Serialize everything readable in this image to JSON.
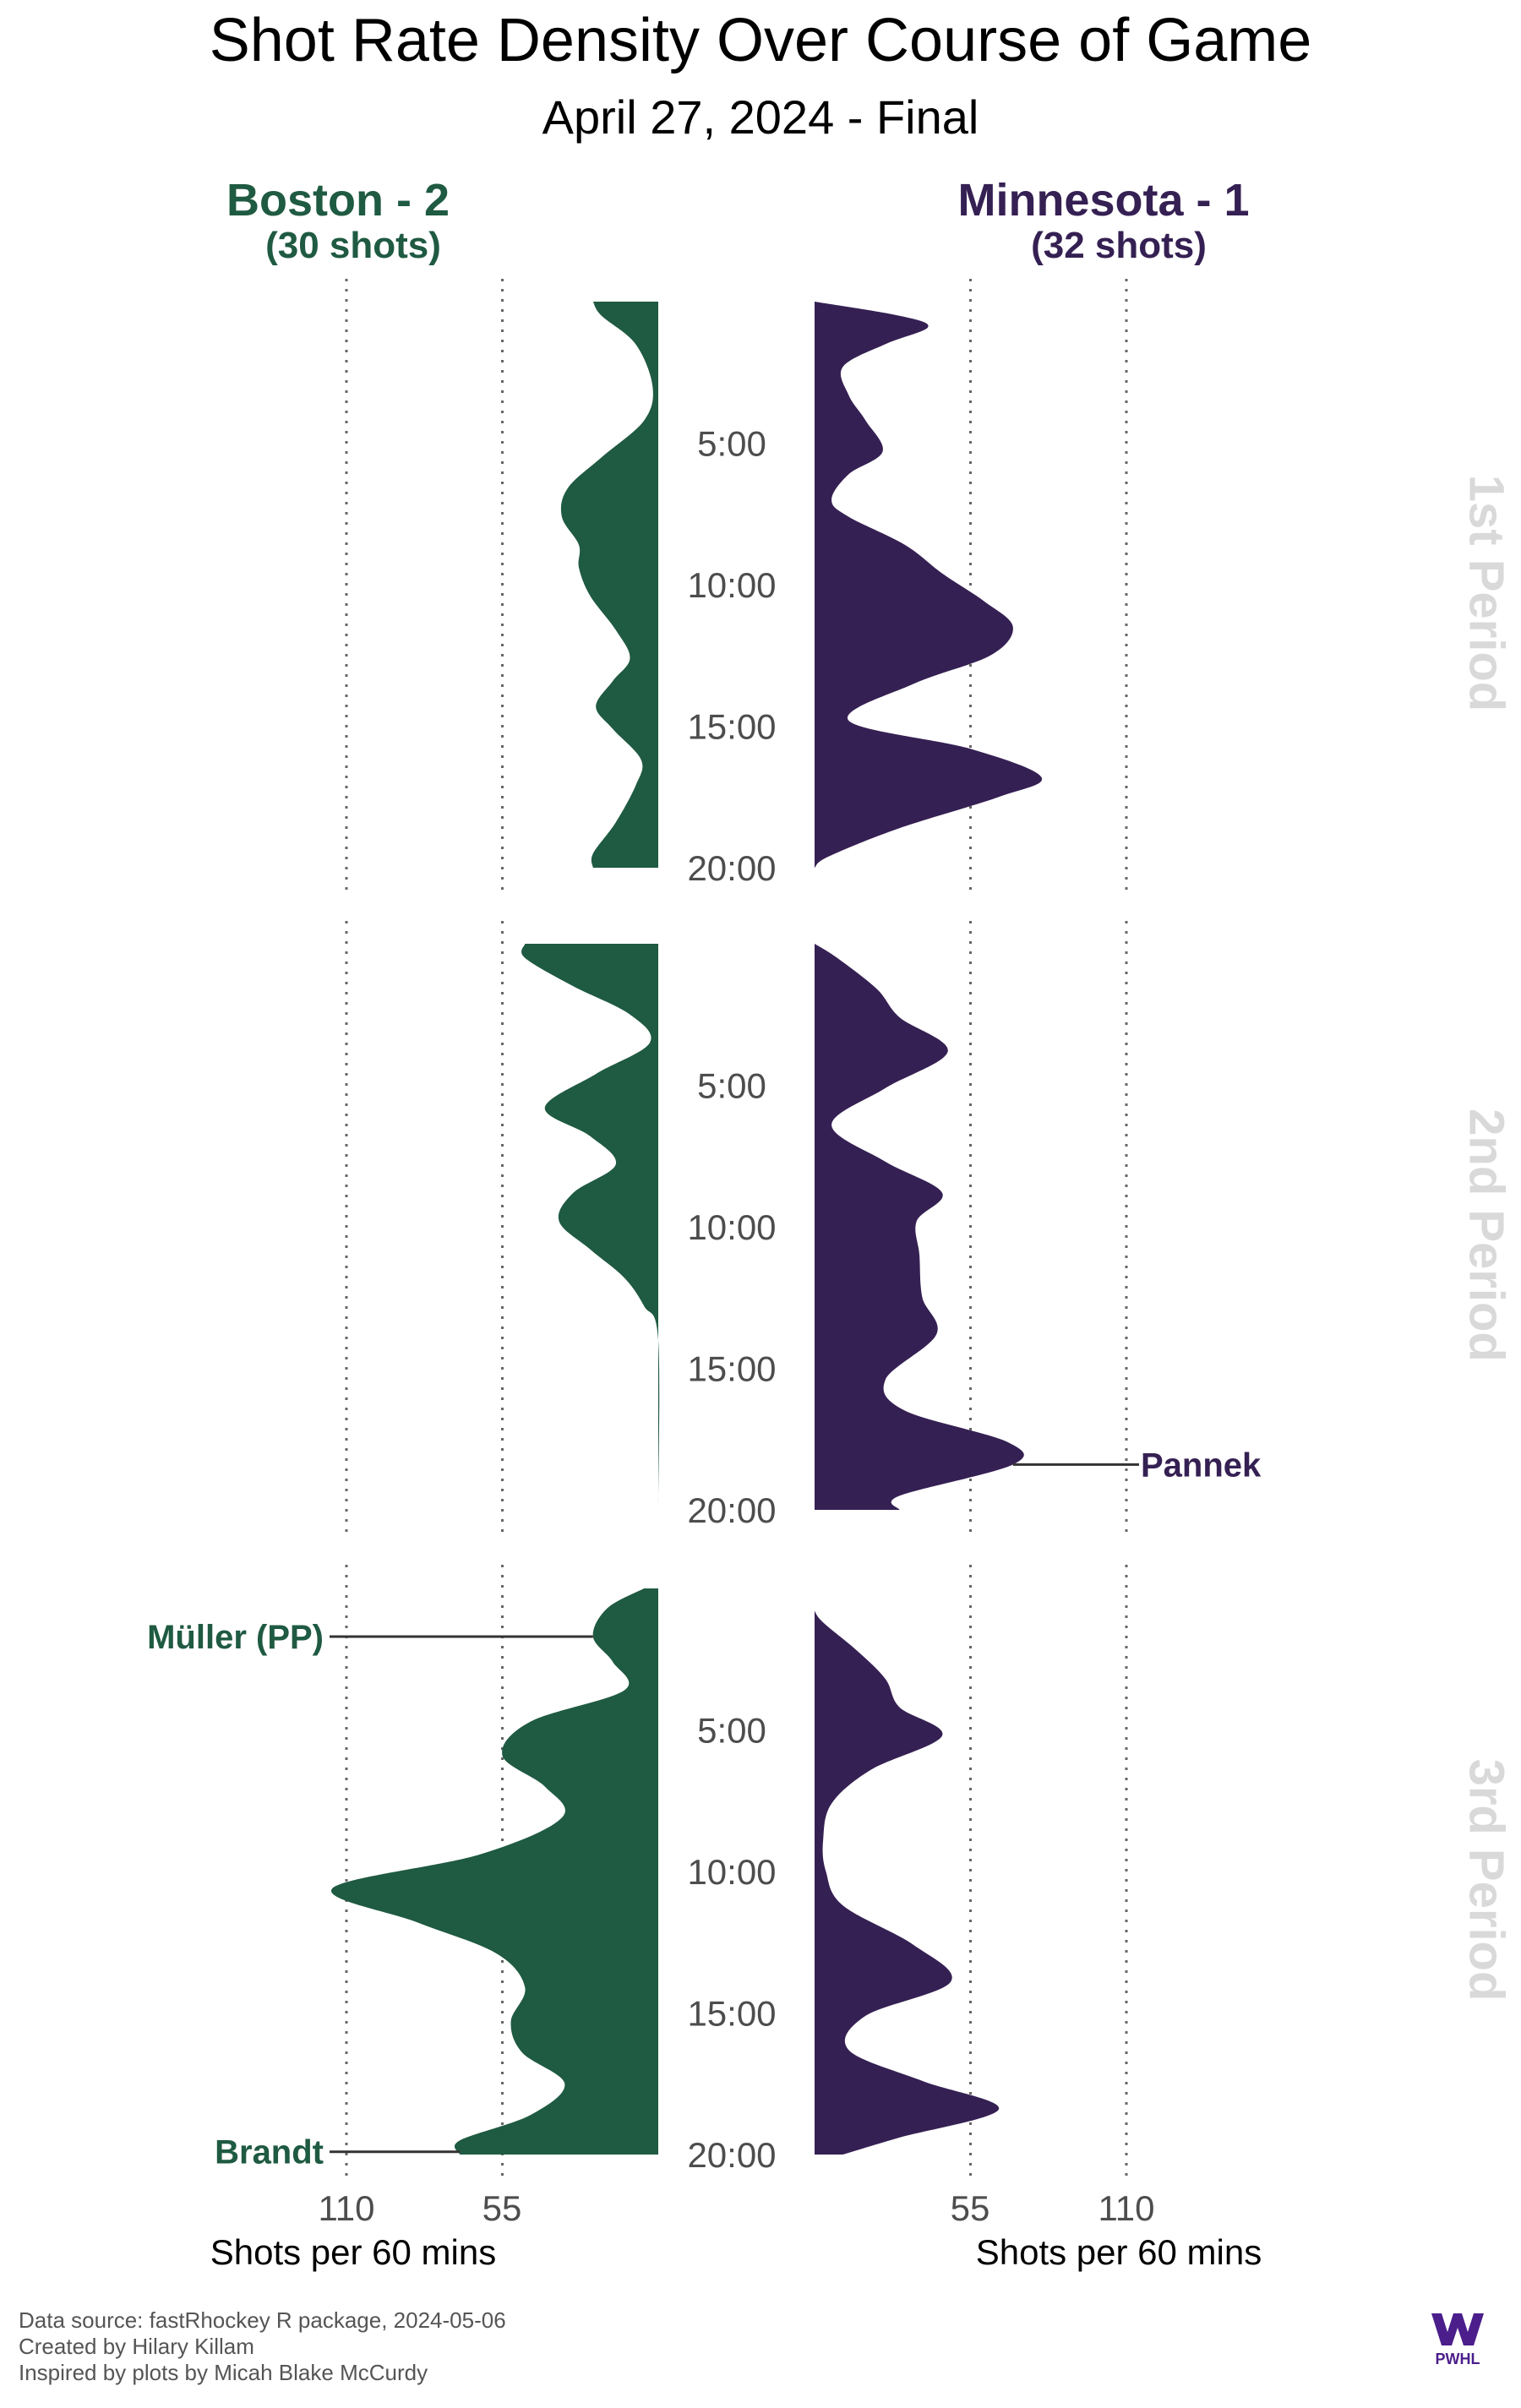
{
  "chart_data": {
    "type": "area",
    "title": "Shot Rate Density Over Course of Game",
    "subtitle": "April 27, 2024 - Final",
    "x_label": "Shots per 60 mins",
    "x_ticks": [
      55,
      110
    ],
    "xlim": [
      0,
      110
    ],
    "ylim": [
      0,
      20
    ],
    "y_ticks": [
      "5:00",
      "10:00",
      "15:00",
      "20:00"
    ],
    "grid": "vertical dotted lines at 55 and 110",
    "teams": [
      {
        "name": "Boston - 2",
        "shots_label": "(30 shots)",
        "color": "#1f5a42",
        "side": "left"
      },
      {
        "name": "Minnesota - 1",
        "shots_label": "(32 shots)",
        "color": "#352053",
        "side": "right"
      }
    ],
    "periods": [
      {
        "label": "1st Period",
        "series": [
          {
            "team": "Boston - 2",
            "points": [
              [
                0,
                23
              ],
              [
                0.5,
                20
              ],
              [
                1.5,
                8
              ],
              [
                3,
                2
              ],
              [
                4.2,
                5
              ],
              [
                5.5,
                20
              ],
              [
                6.6,
                32
              ],
              [
                7.6,
                34
              ],
              [
                8.6,
                28
              ],
              [
                9.4,
                28
              ],
              [
                10.4,
                24
              ],
              [
                11.6,
                15
              ],
              [
                12.6,
                10
              ],
              [
                13.4,
                16
              ],
              [
                14.3,
                22
              ],
              [
                15.1,
                16
              ],
              [
                16.2,
                6
              ],
              [
                17.1,
                8
              ],
              [
                18.4,
                15
              ],
              [
                19.5,
                23
              ],
              [
                20,
                23
              ]
            ]
          },
          {
            "team": "Minnesota - 1",
            "points": [
              [
                0,
                0
              ],
              [
                0.5,
                30
              ],
              [
                0.9,
                40
              ],
              [
                1.5,
                25
              ],
              [
                2.3,
                10
              ],
              [
                3.3,
                12
              ],
              [
                4.2,
                18
              ],
              [
                5.3,
                24
              ],
              [
                6.1,
                12
              ],
              [
                7,
                6
              ],
              [
                7.6,
                12
              ],
              [
                8.6,
                32
              ],
              [
                9.6,
                45
              ],
              [
                10.6,
                60
              ],
              [
                11.5,
                70
              ],
              [
                12.5,
                62
              ],
              [
                13.5,
                35
              ],
              [
                14.8,
                12
              ],
              [
                15.8,
                55
              ],
              [
                16.8,
                80
              ],
              [
                17.5,
                65
              ],
              [
                18.6,
                30
              ],
              [
                19.6,
                5
              ],
              [
                20,
                0
              ]
            ]
          }
        ]
      },
      {
        "label": "2nd Period",
        "series": [
          {
            "team": "Boston - 2",
            "points": [
              [
                0,
                47
              ],
              [
                0.5,
                47
              ],
              [
                1.5,
                30
              ],
              [
                2.5,
                10
              ],
              [
                3.5,
                3
              ],
              [
                4.6,
                22
              ],
              [
                5.8,
                40
              ],
              [
                6.8,
                24
              ],
              [
                7.8,
                15
              ],
              [
                8.8,
                30
              ],
              [
                9.8,
                35
              ],
              [
                10.8,
                24
              ],
              [
                11.8,
                12
              ],
              [
                12.8,
                5
              ],
              [
                14,
                0
              ],
              [
                20,
                0
              ]
            ]
          },
          {
            "team": "Minnesota - 1",
            "points": [
              [
                0,
                0
              ],
              [
                0.5,
                8
              ],
              [
                1.6,
                22
              ],
              [
                2.6,
                30
              ],
              [
                3.8,
                47
              ],
              [
                5.1,
                25
              ],
              [
                6.4,
                6
              ],
              [
                7.7,
                25
              ],
              [
                8.8,
                45
              ],
              [
                9.8,
                36
              ],
              [
                11,
                37
              ],
              [
                12.5,
                38
              ],
              [
                13.8,
                43
              ],
              [
                15.4,
                25
              ],
              [
                16.5,
                32
              ],
              [
                17.6,
                68
              ],
              [
                18.4,
                70
              ],
              [
                19.5,
                30
              ],
              [
                20,
                30
              ]
            ]
          }
        ]
      },
      {
        "label": "3rd Period",
        "series": [
          {
            "team": "Boston - 2",
            "points": [
              [
                0,
                5
              ],
              [
                0.7,
                18
              ],
              [
                1.7,
                23
              ],
              [
                2.6,
                16
              ],
              [
                3.6,
                12
              ],
              [
                4.7,
                45
              ],
              [
                5.9,
                55
              ],
              [
                7,
                40
              ],
              [
                8.1,
                34
              ],
              [
                9.4,
                63
              ],
              [
                10.6,
                115
              ],
              [
                11.8,
                85
              ],
              [
                12.9,
                57
              ],
              [
                14.1,
                47
              ],
              [
                15.3,
                52
              ],
              [
                16.4,
                48
              ],
              [
                17.5,
                33
              ],
              [
                18.6,
                45
              ],
              [
                19.5,
                70
              ],
              [
                20,
                70
              ]
            ]
          },
          {
            "team": "Minnesota - 1",
            "points": [
              [
                0.8,
                0
              ],
              [
                1.2,
                3
              ],
              [
                2.2,
                15
              ],
              [
                3.2,
                25
              ],
              [
                4.2,
                30
              ],
              [
                5.2,
                45
              ],
              [
                6.4,
                20
              ],
              [
                7.6,
                6
              ],
              [
                8.9,
                3
              ],
              [
                10,
                4
              ],
              [
                11.2,
                10
              ],
              [
                12.6,
                35
              ],
              [
                13.9,
                48
              ],
              [
                15.1,
                18
              ],
              [
                16.3,
                12
              ],
              [
                17.4,
                38
              ],
              [
                18.4,
                65
              ],
              [
                19.4,
                30
              ],
              [
                20,
                10
              ]
            ]
          }
        ]
      }
    ],
    "annotations": [
      {
        "text": "Müller (PP)",
        "team": "Boston - 2",
        "period": "3rd Period",
        "time": 1.7
      },
      {
        "text": "Brandt",
        "team": "Boston - 2",
        "period": "3rd Period",
        "time": 19.9
      },
      {
        "text": "Pannek",
        "team": "Minnesota - 1",
        "period": "2nd Period",
        "time": 18.4
      }
    ]
  },
  "footer": {
    "line1": "Data source: fastRhockey R package, 2024-05-06",
    "line2": "Created by Hilary Killam",
    "line3": "Inspired by plots by Micah Blake McCurdy"
  },
  "logo": {
    "text": "PWHL",
    "color": "#4b1e8c"
  }
}
